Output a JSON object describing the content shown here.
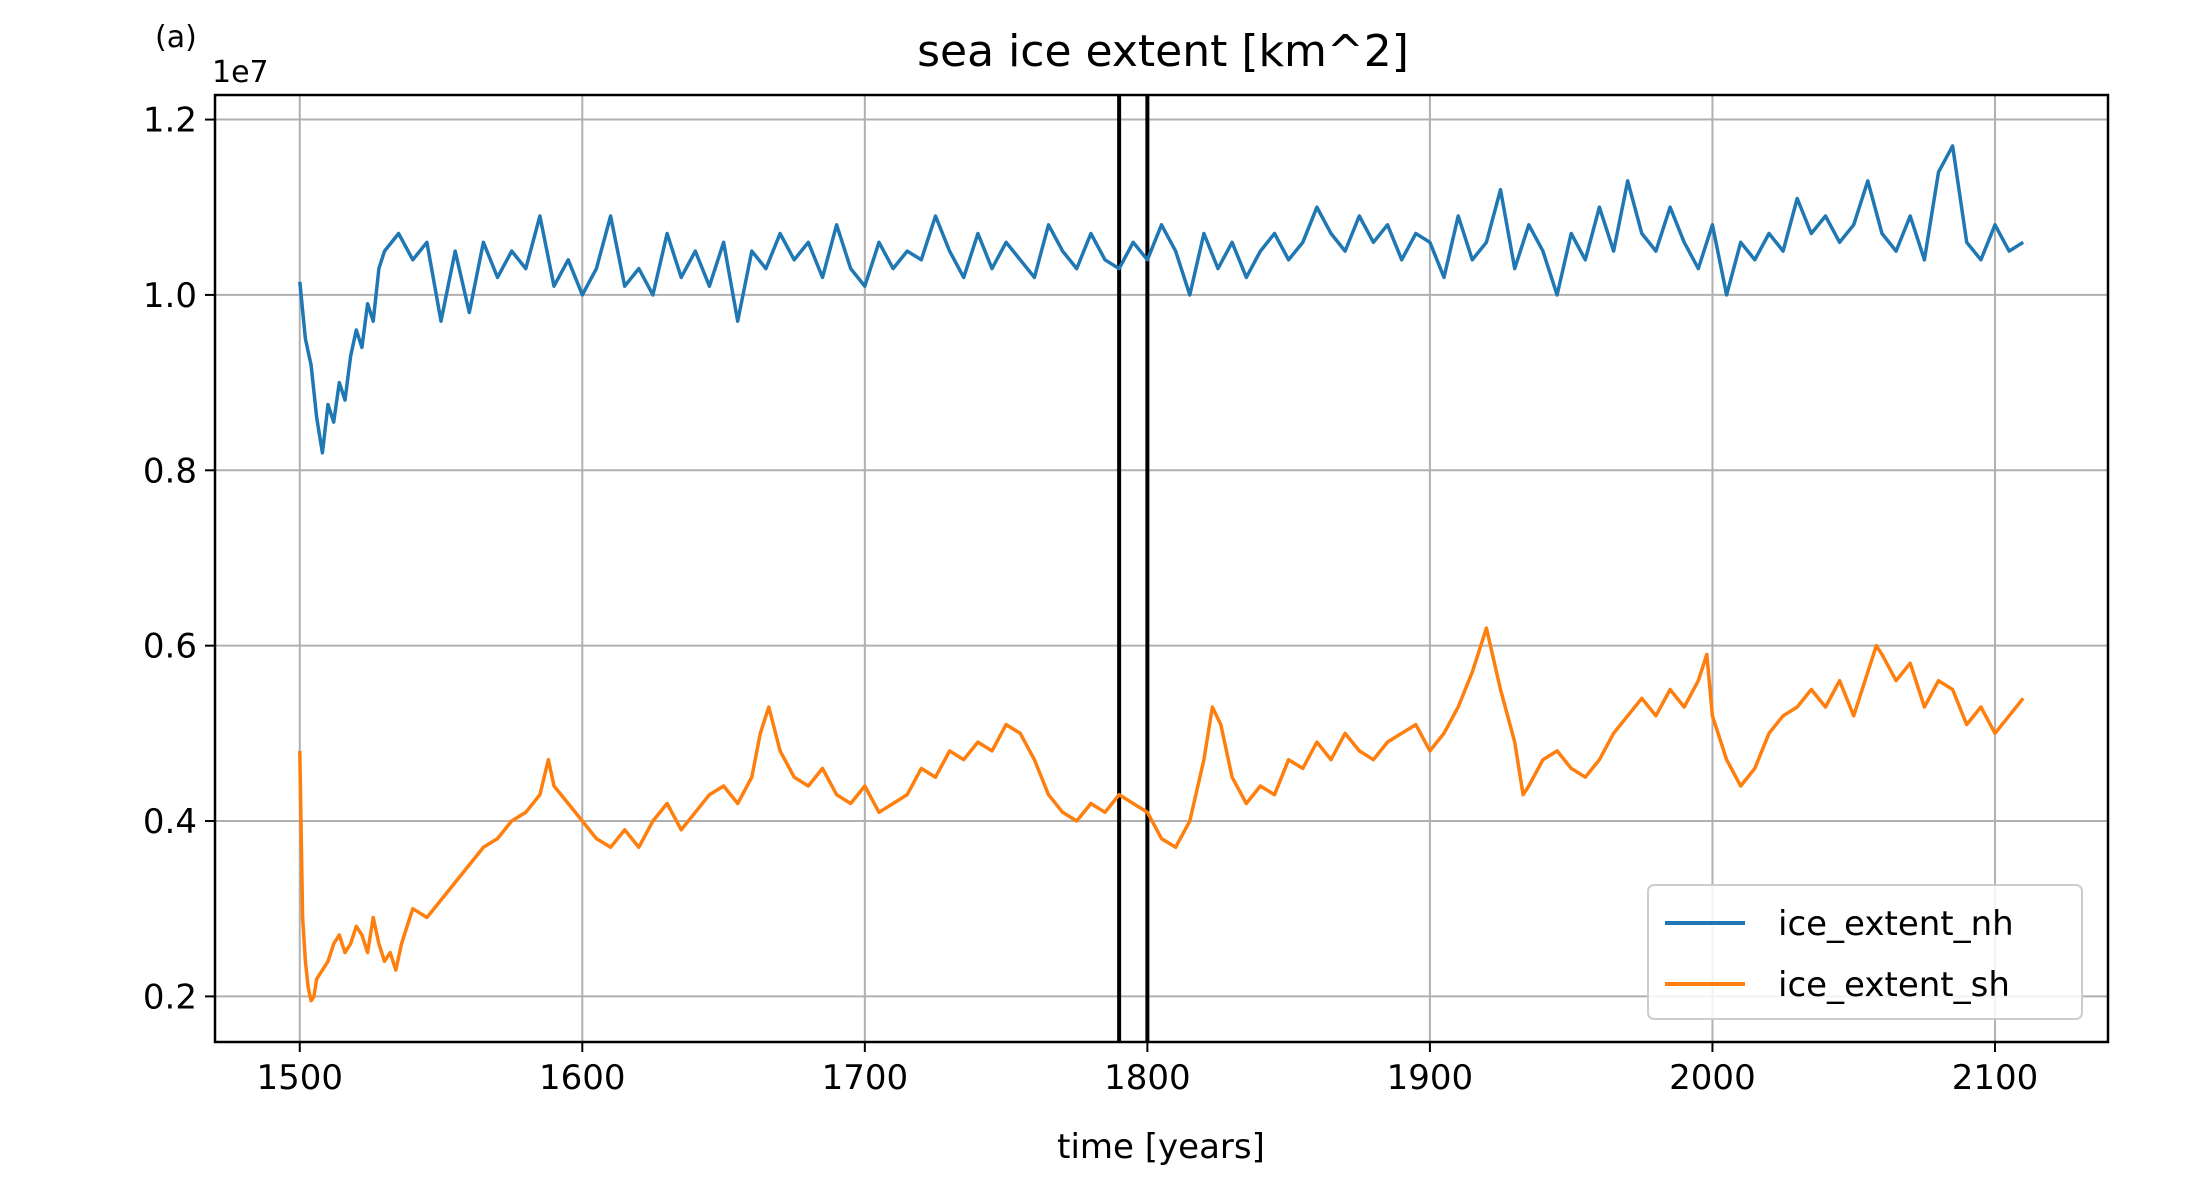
{
  "panel_label": "(a)",
  "chart_data": {
    "type": "line",
    "title": "sea ice extent [km^2]",
    "xlabel": "time [years]",
    "ylabel": "",
    "y_offset_label": "1e7",
    "xlim": [
      1470,
      2140
    ],
    "ylim": [
      0.148,
      1.228
    ],
    "xticks": [
      1500,
      1600,
      1700,
      1800,
      1900,
      2000,
      2100
    ],
    "yticks": [
      0.2,
      0.4,
      0.6,
      0.8,
      1.0,
      1.2
    ],
    "ytick_labels": [
      "0.2",
      "0.4",
      "0.6",
      "0.8",
      "1.0",
      "1.2"
    ],
    "grid": true,
    "legend_position": "lower-right",
    "vlines": [
      1790,
      1800
    ],
    "vline_color": "#000000",
    "series": [
      {
        "name": "ice_extent_nh",
        "color": "#1f77b4",
        "x": [
          1500,
          1502,
          1504,
          1506,
          1508,
          1510,
          1512,
          1514,
          1516,
          1518,
          1520,
          1522,
          1524,
          1526,
          1528,
          1530,
          1535,
          1540,
          1545,
          1550,
          1555,
          1560,
          1565,
          1570,
          1575,
          1580,
          1585,
          1590,
          1595,
          1600,
          1605,
          1610,
          1615,
          1620,
          1625,
          1630,
          1635,
          1640,
          1645,
          1650,
          1655,
          1660,
          1665,
          1670,
          1675,
          1680,
          1685,
          1690,
          1695,
          1700,
          1705,
          1710,
          1715,
          1720,
          1725,
          1730,
          1735,
          1740,
          1745,
          1750,
          1755,
          1760,
          1765,
          1770,
          1775,
          1780,
          1785,
          1790,
          1795,
          1800,
          1805,
          1810,
          1815,
          1820,
          1825,
          1830,
          1835,
          1840,
          1845,
          1850,
          1855,
          1860,
          1865,
          1870,
          1875,
          1880,
          1885,
          1890,
          1895,
          1900,
          1905,
          1910,
          1915,
          1920,
          1925,
          1930,
          1935,
          1940,
          1945,
          1950,
          1955,
          1960,
          1965,
          1970,
          1975,
          1980,
          1985,
          1990,
          1995,
          2000,
          2005,
          2010,
          2015,
          2020,
          2025,
          2030,
          2035,
          2040,
          2045,
          2050,
          2055,
          2060,
          2065,
          2070,
          2075,
          2080,
          2085,
          2090,
          2095,
          2100,
          2105,
          2110
        ],
        "values": [
          1.015,
          0.95,
          0.92,
          0.86,
          0.82,
          0.875,
          0.855,
          0.9,
          0.88,
          0.93,
          0.96,
          0.94,
          0.99,
          0.97,
          1.03,
          1.05,
          1.07,
          1.04,
          1.06,
          0.97,
          1.05,
          0.98,
          1.06,
          1.02,
          1.05,
          1.03,
          1.09,
          1.01,
          1.04,
          1.0,
          1.03,
          1.09,
          1.01,
          1.03,
          1.0,
          1.07,
          1.02,
          1.05,
          1.01,
          1.06,
          0.97,
          1.05,
          1.03,
          1.07,
          1.04,
          1.06,
          1.02,
          1.08,
          1.03,
          1.01,
          1.06,
          1.03,
          1.05,
          1.04,
          1.09,
          1.05,
          1.02,
          1.07,
          1.03,
          1.06,
          1.04,
          1.02,
          1.08,
          1.05,
          1.03,
          1.07,
          1.04,
          1.03,
          1.06,
          1.04,
          1.08,
          1.05,
          1.0,
          1.07,
          1.03,
          1.06,
          1.02,
          1.05,
          1.07,
          1.04,
          1.06,
          1.1,
          1.07,
          1.05,
          1.09,
          1.06,
          1.08,
          1.04,
          1.07,
          1.06,
          1.02,
          1.09,
          1.04,
          1.06,
          1.12,
          1.03,
          1.08,
          1.05,
          1.0,
          1.07,
          1.04,
          1.1,
          1.05,
          1.13,
          1.07,
          1.05,
          1.1,
          1.06,
          1.03,
          1.08,
          1.0,
          1.06,
          1.04,
          1.07,
          1.05,
          1.11,
          1.07,
          1.09,
          1.06,
          1.08,
          1.13,
          1.07,
          1.05,
          1.09,
          1.04,
          1.14,
          1.17,
          1.06,
          1.04,
          1.08,
          1.05,
          1.06
        ]
      },
      {
        "name": "ice_extent_sh",
        "color": "#ff7f0e",
        "x": [
          1500,
          1501,
          1502,
          1503,
          1504,
          1505,
          1506,
          1508,
          1510,
          1512,
          1514,
          1516,
          1518,
          1520,
          1522,
          1524,
          1526,
          1528,
          1530,
          1532,
          1534,
          1536,
          1538,
          1540,
          1545,
          1550,
          1555,
          1560,
          1565,
          1570,
          1575,
          1580,
          1585,
          1588,
          1590,
          1595,
          1600,
          1605,
          1610,
          1615,
          1620,
          1625,
          1630,
          1635,
          1640,
          1645,
          1650,
          1655,
          1660,
          1663,
          1666,
          1670,
          1675,
          1680,
          1685,
          1690,
          1695,
          1700,
          1705,
          1710,
          1715,
          1720,
          1725,
          1730,
          1735,
          1740,
          1745,
          1750,
          1755,
          1760,
          1765,
          1770,
          1775,
          1780,
          1785,
          1790,
          1795,
          1800,
          1805,
          1810,
          1815,
          1820,
          1823,
          1826,
          1830,
          1835,
          1840,
          1845,
          1850,
          1855,
          1860,
          1865,
          1870,
          1875,
          1880,
          1885,
          1890,
          1895,
          1900,
          1905,
          1910,
          1915,
          1918,
          1920,
          1925,
          1930,
          1933,
          1935,
          1940,
          1945,
          1950,
          1955,
          1960,
          1965,
          1970,
          1975,
          1980,
          1985,
          1990,
          1995,
          1998,
          2000,
          2005,
          2010,
          2015,
          2020,
          2025,
          2030,
          2035,
          2040,
          2045,
          2050,
          2055,
          2058,
          2060,
          2065,
          2070,
          2075,
          2080,
          2085,
          2090,
          2095,
          2100,
          2105,
          2110
        ],
        "values": [
          0.48,
          0.29,
          0.24,
          0.21,
          0.195,
          0.2,
          0.22,
          0.23,
          0.24,
          0.26,
          0.27,
          0.25,
          0.26,
          0.28,
          0.27,
          0.25,
          0.29,
          0.26,
          0.24,
          0.25,
          0.23,
          0.26,
          0.28,
          0.3,
          0.29,
          0.31,
          0.33,
          0.35,
          0.37,
          0.38,
          0.4,
          0.41,
          0.43,
          0.47,
          0.44,
          0.42,
          0.4,
          0.38,
          0.37,
          0.39,
          0.37,
          0.4,
          0.42,
          0.39,
          0.41,
          0.43,
          0.44,
          0.42,
          0.45,
          0.5,
          0.53,
          0.48,
          0.45,
          0.44,
          0.46,
          0.43,
          0.42,
          0.44,
          0.41,
          0.42,
          0.43,
          0.46,
          0.45,
          0.48,
          0.47,
          0.49,
          0.48,
          0.51,
          0.5,
          0.47,
          0.43,
          0.41,
          0.4,
          0.42,
          0.41,
          0.43,
          0.42,
          0.41,
          0.38,
          0.37,
          0.4,
          0.47,
          0.53,
          0.51,
          0.45,
          0.42,
          0.44,
          0.43,
          0.47,
          0.46,
          0.49,
          0.47,
          0.5,
          0.48,
          0.47,
          0.49,
          0.5,
          0.51,
          0.48,
          0.5,
          0.53,
          0.57,
          0.6,
          0.62,
          0.55,
          0.49,
          0.43,
          0.44,
          0.47,
          0.48,
          0.46,
          0.45,
          0.47,
          0.5,
          0.52,
          0.54,
          0.52,
          0.55,
          0.53,
          0.56,
          0.59,
          0.52,
          0.47,
          0.44,
          0.46,
          0.5,
          0.52,
          0.53,
          0.55,
          0.53,
          0.56,
          0.52,
          0.57,
          0.6,
          0.59,
          0.56,
          0.58,
          0.53,
          0.56,
          0.55,
          0.51,
          0.53,
          0.5,
          0.52,
          0.54
        ]
      }
    ]
  }
}
